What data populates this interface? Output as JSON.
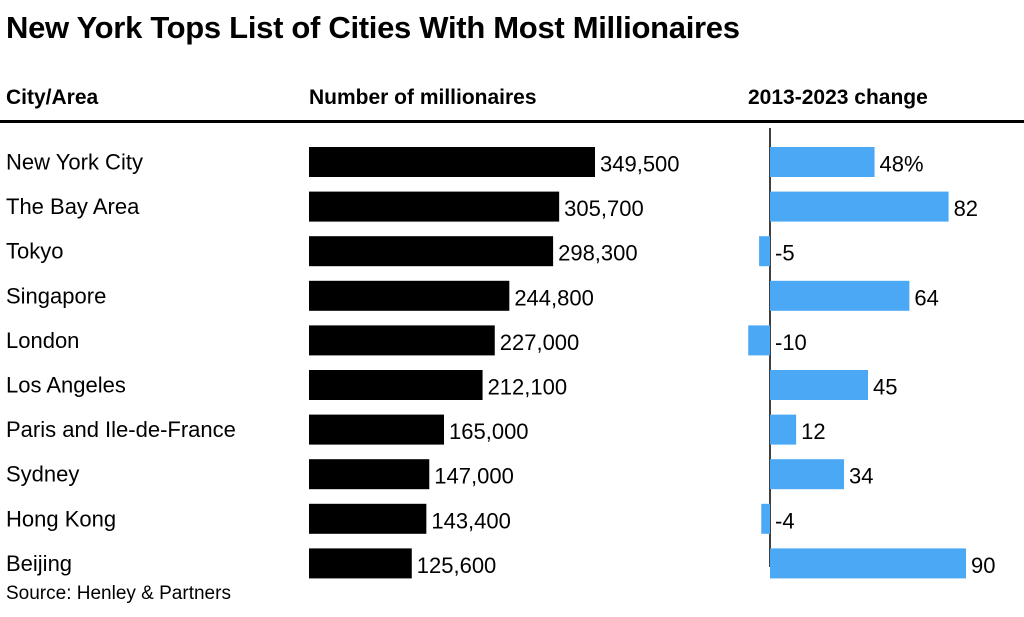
{
  "title": "New York Tops List of Cities With Most Millionaires",
  "headers": {
    "city": "City/Area",
    "number": "Number of millionaires",
    "change": "2013-2023 change"
  },
  "source": "Source: Henley & Partners",
  "colors": {
    "millionaire_bar": "#000000",
    "change_bar": "#4aa8f4",
    "text": "#000000"
  },
  "chart_data": {
    "type": "bar",
    "categories": [
      "New York City",
      "The Bay Area",
      "Tokyo",
      "Singapore",
      "London",
      "Los Angeles",
      "Paris and Ile-de-France",
      "Sydney",
      "Hong Kong",
      "Beijing"
    ],
    "series": [
      {
        "name": "Number of millionaires",
        "values": [
          349500,
          305700,
          298300,
          244800,
          227000,
          212100,
          165000,
          147000,
          143400,
          125600
        ],
        "labels": [
          "349,500",
          "305,700",
          "298,300",
          "244,800",
          "227,000",
          "212,100",
          "165,000",
          "147,000",
          "143,400",
          "125,600"
        ]
      },
      {
        "name": "2013-2023 change",
        "values": [
          48,
          82,
          -5,
          64,
          -10,
          45,
          12,
          34,
          -4,
          90
        ],
        "labels": [
          "48%",
          "82",
          "-5",
          "64",
          "-10",
          "45",
          "12",
          "34",
          "-4",
          "90"
        ]
      }
    ],
    "orientation": "horizontal",
    "grid": false,
    "legend": "none"
  }
}
